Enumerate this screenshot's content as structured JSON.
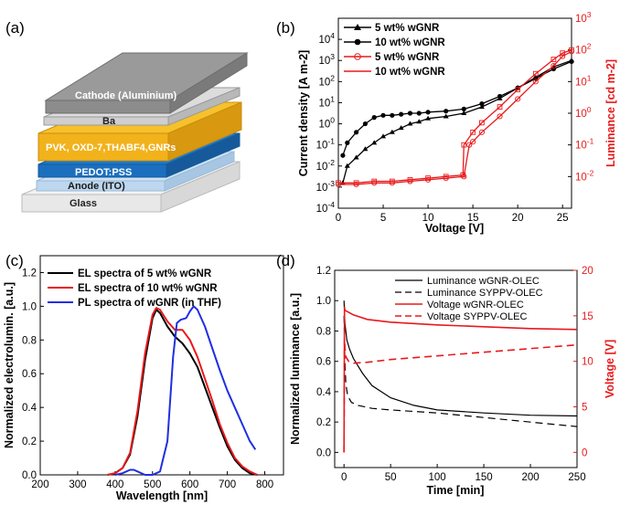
{
  "panel_labels": [
    "(a)",
    "(b)",
    "(c)",
    "(d)"
  ],
  "device": {
    "layers": [
      "Cathode (Aluminium)",
      "Ba",
      "PVK, OXD-7,THABF4,GNRs",
      "PEDOT:PSS",
      "Anode (ITO)",
      "Glass"
    ],
    "colors": [
      "#8c8c8c",
      "#cfcfcf",
      "#f2b21b",
      "#1c6fbf",
      "#bcd7ee",
      "#eeeeee"
    ]
  },
  "colors": {
    "black": "#000000",
    "red": "#e8191b",
    "blue": "#1f2fe0",
    "red_light": "#f08a8a"
  },
  "chart_data": [
    {
      "id": "b",
      "type": "line",
      "xlabel": "Voltage [V]",
      "ylabel": "Current density [A m-2]",
      "y2label": "Luminance [cd m-2]",
      "xlim": [
        0,
        26
      ],
      "ylim_log": [
        -4,
        5
      ],
      "y2lim_log": [
        -3,
        3
      ],
      "x_ticks": [
        "0",
        "5",
        "10",
        "15",
        "20",
        "25"
      ],
      "y_ticks": [
        "10-4",
        "10-3",
        "10-2",
        "10-1",
        "100",
        "101",
        "102",
        "103",
        "104"
      ],
      "y2_ticks": [
        "10-2",
        "10-1",
        "100",
        "101",
        "102",
        "103"
      ],
      "legend": [
        "5 wt% wGNR",
        "10 wt% wGNR",
        "5 wt% wGNR",
        "10 wt% wGNR"
      ],
      "series": [
        {
          "name": "5 wt% wGNR",
          "axis": "left",
          "marker": "triangle",
          "color": "#000000",
          "x": [
            0.5,
            1,
            2,
            3,
            4,
            5,
            6,
            7,
            8,
            9,
            10,
            12,
            14,
            16,
            18,
            20,
            22,
            24,
            26
          ],
          "log_y": [
            -2.8,
            -2.0,
            -1.6,
            -1.2,
            -0.9,
            -0.6,
            -0.4,
            -0.2,
            0.0,
            0.1,
            0.25,
            0.35,
            0.5,
            0.8,
            1.2,
            1.7,
            2.2,
            2.7,
            3.0
          ]
        },
        {
          "name": "10 wt% wGNR",
          "axis": "left",
          "marker": "circle",
          "color": "#000000",
          "x": [
            0.5,
            1,
            2,
            3,
            4,
            5,
            6,
            7,
            8,
            9,
            10,
            12,
            14,
            16,
            18,
            20,
            22,
            24,
            26
          ],
          "log_y": [
            -1.5,
            -0.9,
            -0.4,
            0.0,
            0.3,
            0.4,
            0.4,
            0.45,
            0.5,
            0.5,
            0.55,
            0.6,
            0.7,
            0.95,
            1.3,
            1.7,
            2.15,
            2.6,
            2.95
          ]
        },
        {
          "name": "5 wt% wGNR",
          "axis": "right",
          "marker": "open-circle",
          "color": "#e8191b",
          "x": [
            0,
            2,
            4,
            6,
            8,
            10,
            12,
            14,
            14.6,
            15,
            16,
            18,
            20,
            22,
            24,
            25,
            26
          ],
          "log_y": [
            -2.25,
            -2.25,
            -2.2,
            -2.2,
            -2.15,
            -2.1,
            -2.05,
            -2.0,
            -1.0,
            -0.9,
            -0.6,
            -0.1,
            0.45,
            1.0,
            1.5,
            1.8,
            1.95
          ]
        },
        {
          "name": "10 wt% wGNR",
          "axis": "right",
          "marker": "open-square",
          "color": "#e8191b",
          "x": [
            0,
            2,
            4,
            6,
            8,
            10,
            12,
            13.9,
            14.0,
            15,
            16,
            18,
            20,
            22,
            24,
            25,
            26
          ],
          "log_y": [
            -2.2,
            -2.2,
            -2.15,
            -2.15,
            -2.1,
            -2.05,
            -2.0,
            -1.95,
            -1.0,
            -0.6,
            -0.3,
            0.2,
            0.75,
            1.25,
            1.7,
            1.9,
            2.0
          ]
        }
      ]
    },
    {
      "id": "c",
      "type": "line",
      "xlabel": "Wavelength [nm]",
      "ylabel": "Normalized electrolumin. [a.u.]",
      "xlim": [
        200,
        850
      ],
      "ylim": [
        0,
        1.3
      ],
      "x_ticks": [
        "200",
        "300",
        "400",
        "500",
        "600",
        "700",
        "800"
      ],
      "y_ticks": [
        "0.0",
        "0.2",
        "0.4",
        "0.6",
        "0.8",
        "1.0",
        "1.2"
      ],
      "legend": [
        "EL spectra of 5 wt% wGNR",
        "EL spectra of 10 wt% wGNR",
        "PL spectra of wGNR (in THF)"
      ],
      "series": [
        {
          "name": "EL spectra of 5 wt% wGNR",
          "color": "#000000",
          "x": [
            380,
            400,
            420,
            440,
            460,
            480,
            500,
            510,
            520,
            540,
            560,
            580,
            600,
            620,
            640,
            660,
            680,
            700,
            720,
            740,
            760,
            780
          ],
          "y": [
            0,
            0.01,
            0.04,
            0.12,
            0.35,
            0.68,
            0.93,
            0.98,
            0.96,
            0.88,
            0.82,
            0.78,
            0.72,
            0.64,
            0.52,
            0.4,
            0.28,
            0.17,
            0.09,
            0.04,
            0.01,
            0
          ]
        },
        {
          "name": "EL spectra of 10 wt% wGNR",
          "color": "#e8191b",
          "x": [
            380,
            400,
            420,
            440,
            460,
            480,
            500,
            510,
            520,
            540,
            560,
            580,
            600,
            620,
            640,
            660,
            680,
            700,
            720,
            740,
            760,
            780
          ],
          "y": [
            0,
            0.01,
            0.04,
            0.13,
            0.38,
            0.72,
            0.95,
            0.99,
            0.98,
            0.91,
            0.86,
            0.86,
            0.8,
            0.7,
            0.57,
            0.44,
            0.3,
            0.19,
            0.1,
            0.05,
            0.02,
            0
          ]
        },
        {
          "name": "PL spectra of wGNR (in THF)",
          "color": "#1f2fe0",
          "x": [
            400,
            420,
            440,
            450,
            460,
            480,
            500,
            520,
            540,
            555,
            565,
            575,
            590,
            600,
            610,
            620,
            640,
            660,
            680,
            700,
            720,
            740,
            760,
            775
          ],
          "y": [
            0.0,
            0.01,
            0.03,
            0.03,
            0.02,
            0.0,
            0.0,
            0.02,
            0.2,
            0.7,
            0.9,
            0.92,
            0.93,
            0.97,
            1.0,
            0.98,
            0.88,
            0.75,
            0.62,
            0.5,
            0.4,
            0.3,
            0.2,
            0.15
          ]
        }
      ]
    },
    {
      "id": "d",
      "type": "line",
      "xlabel": "Time [min]",
      "ylabel": "Normalized luminance [a.u.]",
      "y2label": "Voltage [V]",
      "xlim": [
        -10,
        250
      ],
      "ylim": [
        -0.1,
        1.2
      ],
      "y2lim": [
        -1.67,
        20
      ],
      "x_ticks": [
        "0",
        "50",
        "100",
        "150",
        "200",
        "250"
      ],
      "y_ticks": [
        "0.0",
        "0.2",
        "0.4",
        "0.6",
        "0.8",
        "1.0",
        "1.2"
      ],
      "y2_ticks": [
        "0",
        "5",
        "10",
        "15",
        "20"
      ],
      "legend": [
        "Luminance wGNR-OLEC",
        "Luminance SYPPV-OLEC",
        "Voltage wGNR-OLEC",
        "Voltage SYPPV-OLEC"
      ],
      "series": [
        {
          "name": "Luminance wGNR-OLEC",
          "axis": "left",
          "dash": "solid",
          "color": "#000000",
          "x": [
            0,
            1,
            3,
            6,
            10,
            20,
            30,
            50,
            75,
            100,
            150,
            200,
            250
          ],
          "y": [
            1.0,
            0.85,
            0.74,
            0.68,
            0.62,
            0.52,
            0.44,
            0.36,
            0.31,
            0.28,
            0.26,
            0.245,
            0.24
          ]
        },
        {
          "name": "Luminance SYPPV-OLEC",
          "axis": "left",
          "dash": "dashed",
          "color": "#000000",
          "x": [
            0,
            1,
            2,
            4,
            8,
            15,
            30,
            50,
            100,
            150,
            200,
            250
          ],
          "y": [
            0.9,
            0.6,
            0.45,
            0.37,
            0.33,
            0.31,
            0.29,
            0.28,
            0.26,
            0.23,
            0.2,
            0.17
          ]
        },
        {
          "name": "Voltage wGNR-OLEC",
          "axis": "right",
          "dash": "solid",
          "color": "#e8191b",
          "x": [
            0,
            0.5,
            1,
            3,
            10,
            25,
            50,
            100,
            150,
            200,
            250
          ],
          "y": [
            0,
            16.0,
            15.6,
            15.5,
            15.1,
            14.6,
            14.3,
            14.0,
            13.8,
            13.6,
            13.5
          ]
        },
        {
          "name": "Voltage SYPPV-OLEC",
          "axis": "right",
          "dash": "dashed",
          "color": "#e8191b",
          "x": [
            0,
            0.5,
            1,
            2,
            5,
            10,
            25,
            50,
            100,
            150,
            200,
            250
          ],
          "y": [
            0,
            12.5,
            11.5,
            10.5,
            10.0,
            9.8,
            9.9,
            10.2,
            10.6,
            11.0,
            11.4,
            11.8
          ]
        }
      ]
    }
  ]
}
